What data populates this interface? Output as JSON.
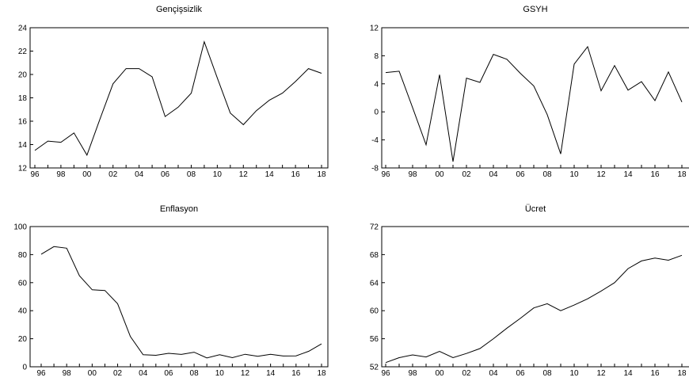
{
  "chart_data": [
    {
      "type": "line",
      "title": "Gençişsizlik",
      "xlabel": "",
      "ylabel": "",
      "xlim": [
        1996,
        2018
      ],
      "ylim": [
        12,
        24
      ],
      "y_ticks": [
        "12",
        "14",
        "16",
        "18",
        "20",
        "22",
        "24"
      ],
      "x_ticks": [
        "96",
        "98",
        "00",
        "02",
        "04",
        "06",
        "08",
        "10",
        "12",
        "14",
        "16",
        "18"
      ],
      "x": [
        1996,
        1997,
        1998,
        1999,
        2000,
        2001,
        2002,
        2003,
        2004,
        2005,
        2006,
        2007,
        2008,
        2009,
        2010,
        2011,
        2012,
        2013,
        2014,
        2015,
        2016,
        2017,
        2018
      ],
      "values": [
        13.5,
        14.3,
        14.2,
        15.0,
        13.1,
        16.2,
        19.2,
        20.5,
        20.5,
        19.8,
        16.4,
        17.2,
        18.4,
        22.8,
        19.7,
        16.7,
        15.7,
        16.9,
        17.8,
        18.4,
        19.4,
        20.5,
        20.1
      ]
    },
    {
      "type": "line",
      "title": "GSYH",
      "xlabel": "",
      "ylabel": "",
      "xlim": [
        1996,
        2018
      ],
      "ylim": [
        -8,
        12
      ],
      "y_ticks": [
        "-8",
        "-4",
        "0",
        "4",
        "8",
        "12"
      ],
      "x_ticks": [
        "96",
        "98",
        "00",
        "02",
        "04",
        "06",
        "08",
        "10",
        "12",
        "14",
        "16",
        "18"
      ],
      "x": [
        1996,
        1997,
        1998,
        1999,
        2000,
        2001,
        2002,
        2003,
        2004,
        2005,
        2006,
        2007,
        2008,
        2009,
        2010,
        2011,
        2012,
        2013,
        2014,
        2015,
        2016,
        2017,
        2018
      ],
      "values": [
        5.6,
        5.8,
        0.6,
        -4.7,
        5.3,
        -7.1,
        4.8,
        4.2,
        8.2,
        7.5,
        5.5,
        3.7,
        -0.4,
        -6.0,
        6.8,
        9.3,
        3.0,
        6.6,
        3.1,
        4.3,
        1.6,
        5.7,
        1.4
      ]
    },
    {
      "type": "line",
      "title": "Enflasyon",
      "xlabel": "",
      "ylabel": "",
      "xlim": [
        1996,
        2018
      ],
      "ylim": [
        0,
        100
      ],
      "y_ticks": [
        "0",
        "20",
        "40",
        "60",
        "80",
        "100"
      ],
      "x_ticks": [
        "96",
        "98",
        "00",
        "02",
        "04",
        "06",
        "08",
        "10",
        "12",
        "14",
        "16",
        "18"
      ],
      "x": [
        1996,
        1997,
        1998,
        1999,
        2000,
        2001,
        2002,
        2003,
        2004,
        2005,
        2006,
        2007,
        2008,
        2009,
        2010,
        2011,
        2012,
        2013,
        2014,
        2015,
        2016,
        2017,
        2018
      ],
      "values": [
        80.3,
        85.7,
        84.6,
        64.9,
        54.9,
        54.4,
        45.0,
        21.6,
        8.6,
        8.2,
        9.6,
        8.8,
        10.4,
        6.3,
        8.6,
        6.5,
        8.9,
        7.5,
        8.9,
        7.7,
        7.8,
        11.1,
        16.3
      ]
    },
    {
      "type": "line",
      "title": "Ücret",
      "xlabel": "",
      "ylabel": "",
      "xlim": [
        1996,
        2018
      ],
      "ylim": [
        52,
        72
      ],
      "y_ticks": [
        "52",
        "56",
        "60",
        "64",
        "68",
        "72"
      ],
      "x_ticks": [
        "96",
        "98",
        "00",
        "02",
        "04",
        "06",
        "08",
        "10",
        "12",
        "14",
        "16",
        "18"
      ],
      "x": [
        1996,
        1997,
        1998,
        1999,
        2000,
        2001,
        2002,
        2003,
        2004,
        2005,
        2006,
        2007,
        2008,
        2009,
        2010,
        2011,
        2012,
        2013,
        2014,
        2015,
        2016,
        2017,
        2018
      ],
      "values": [
        52.6,
        53.3,
        53.7,
        53.4,
        54.2,
        53.3,
        53.9,
        54.6,
        56.0,
        57.5,
        58.9,
        60.4,
        61.0,
        60.0,
        60.8,
        61.7,
        62.8,
        64.0,
        66.0,
        67.1,
        67.5,
        67.2,
        67.9
      ]
    }
  ]
}
